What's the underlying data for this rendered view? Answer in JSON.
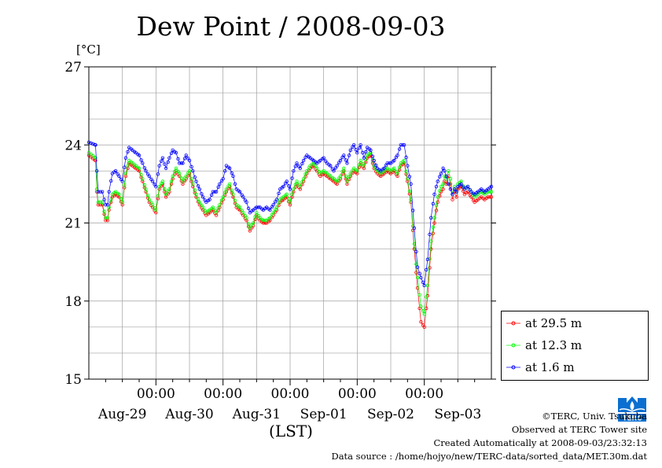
{
  "chart_data": {
    "type": "line",
    "title": "Dew Point / 2008-09-03",
    "ylabel": "[°C]",
    "xlabel": "(LST)",
    "ylim": [
      15,
      27
    ],
    "yticks": [
      15,
      18,
      21,
      24,
      27
    ],
    "xlim_days": [
      0,
      6
    ],
    "x_major_ticks": [
      "00:00",
      "00:00",
      "00:00",
      "00:00",
      "00:00"
    ],
    "day_labels": [
      "Aug-29",
      "Aug-30",
      "Aug-31",
      "Sep-01",
      "Sep-02",
      "Sep-03"
    ],
    "grid": true,
    "legend_position": "bottom-right outside",
    "series": [
      {
        "name": "at 29.5 m",
        "color": "#ff0000",
        "x": [
          0,
          0.1,
          0.12,
          0.14,
          0.2,
          0.25,
          0.28,
          0.3,
          0.35,
          0.4,
          0.45,
          0.5,
          0.55,
          0.6,
          0.65,
          0.7,
          0.75,
          0.8,
          0.85,
          0.9,
          0.95,
          1.0,
          1.05,
          1.1,
          1.15,
          1.2,
          1.25,
          1.3,
          1.35,
          1.4,
          1.45,
          1.5,
          1.55,
          1.6,
          1.65,
          1.7,
          1.75,
          1.8,
          1.85,
          1.9,
          1.95,
          2.0,
          2.05,
          2.1,
          2.15,
          2.2,
          2.25,
          2.3,
          2.35,
          2.4,
          2.45,
          2.5,
          2.55,
          2.6,
          2.65,
          2.7,
          2.75,
          2.8,
          2.85,
          2.9,
          2.95,
          3.0,
          3.05,
          3.1,
          3.15,
          3.2,
          3.25,
          3.3,
          3.35,
          3.4,
          3.45,
          3.5,
          3.55,
          3.6,
          3.65,
          3.7,
          3.75,
          3.8,
          3.85,
          3.9,
          3.95,
          4.0,
          4.05,
          4.1,
          4.15,
          4.2,
          4.25,
          4.3,
          4.35,
          4.4,
          4.45,
          4.5,
          4.55,
          4.6,
          4.65,
          4.7,
          4.75,
          4.8,
          4.85,
          4.9,
          4.95,
          5.0,
          5.05,
          5.1,
          5.15,
          5.2,
          5.25,
          5.28,
          5.3,
          5.33,
          5.36,
          5.39,
          5.42,
          5.45,
          5.48,
          5.5,
          5.55,
          5.6,
          5.65,
          5.7,
          5.75,
          5.8,
          5.85,
          5.9,
          5.95,
          6.0
        ],
        "y": [
          23.6,
          23.4,
          22.2,
          21.7,
          21.7,
          21.1,
          21.1,
          21.5,
          22.0,
          22.1,
          22.0,
          21.7,
          22.8,
          23.3,
          23.2,
          23.1,
          23.0,
          22.6,
          22.2,
          21.8,
          21.6,
          21.4,
          22.3,
          22.5,
          22.0,
          22.2,
          22.7,
          23.0,
          22.8,
          22.5,
          22.7,
          22.9,
          22.4,
          22.0,
          21.7,
          21.5,
          21.3,
          21.4,
          21.5,
          21.3,
          21.6,
          21.9,
          22.2,
          22.4,
          22.0,
          21.6,
          21.5,
          21.3,
          21.1,
          20.7,
          20.9,
          21.3,
          21.1,
          21.0,
          21.0,
          21.1,
          21.3,
          21.5,
          21.8,
          21.9,
          22.0,
          21.7,
          22.2,
          22.5,
          22.3,
          22.6,
          22.9,
          23.1,
          23.2,
          23.0,
          22.8,
          22.9,
          22.8,
          22.7,
          22.6,
          22.5,
          22.7,
          23.0,
          22.5,
          22.8,
          23.0,
          22.9,
          23.3,
          23.1,
          23.5,
          23.6,
          23.1,
          22.9,
          22.8,
          22.9,
          23.0,
          22.9,
          23.0,
          22.8,
          23.2,
          23.3,
          22.6,
          21.8,
          20.0,
          18.5,
          17.2,
          17.0,
          18.2,
          20.0,
          21.0,
          21.8,
          22.2,
          22.3,
          22.6,
          22.5,
          22.8,
          22.5,
          21.9,
          22.2,
          22.0,
          22.3,
          22.4,
          22.1,
          22.2,
          22.0,
          21.8,
          21.9,
          22.0,
          21.9,
          22.0,
          22.0
        ],
        "dx": 0.03
      },
      {
        "name": "at 12.3 m",
        "color": "#00ff00",
        "x": [
          0,
          0.1,
          0.12,
          0.14,
          0.2,
          0.25,
          0.28,
          0.3,
          0.35,
          0.4,
          0.45,
          0.5,
          0.55,
          0.6,
          0.65,
          0.7,
          0.75,
          0.8,
          0.85,
          0.9,
          0.95,
          1.0,
          1.05,
          1.1,
          1.15,
          1.2,
          1.25,
          1.3,
          1.35,
          1.4,
          1.45,
          1.5,
          1.55,
          1.6,
          1.65,
          1.7,
          1.75,
          1.8,
          1.85,
          1.9,
          1.95,
          2.0,
          2.05,
          2.1,
          2.15,
          2.2,
          2.25,
          2.3,
          2.35,
          2.4,
          2.45,
          2.5,
          2.55,
          2.6,
          2.65,
          2.7,
          2.75,
          2.8,
          2.85,
          2.9,
          2.95,
          3.0,
          3.05,
          3.1,
          3.15,
          3.2,
          3.25,
          3.3,
          3.35,
          3.4,
          3.45,
          3.5,
          3.55,
          3.6,
          3.65,
          3.7,
          3.75,
          3.8,
          3.85,
          3.9,
          3.95,
          4.0,
          4.05,
          4.1,
          4.15,
          4.2,
          4.25,
          4.3,
          4.35,
          4.4,
          4.45,
          4.5,
          4.55,
          4.6,
          4.65,
          4.7,
          4.75,
          4.8,
          4.85,
          4.9,
          4.95,
          5.0,
          5.05,
          5.1,
          5.15,
          5.2,
          5.25,
          5.28,
          5.3,
          5.33,
          5.36,
          5.39,
          5.42,
          5.45,
          5.48,
          5.5,
          5.55,
          5.6,
          5.65,
          5.7,
          5.75,
          5.8,
          5.85,
          5.9,
          5.95,
          6.0
        ],
        "y": [
          23.7,
          23.5,
          22.3,
          21.8,
          21.8,
          21.2,
          21.2,
          21.6,
          22.1,
          22.2,
          22.1,
          21.8,
          22.9,
          23.4,
          23.3,
          23.2,
          23.1,
          22.7,
          22.3,
          21.9,
          21.7,
          21.5,
          22.4,
          22.6,
          22.1,
          22.3,
          22.8,
          23.1,
          22.9,
          22.6,
          22.8,
          23.0,
          22.5,
          22.1,
          21.8,
          21.6,
          21.4,
          21.5,
          21.6,
          21.4,
          21.7,
          22.0,
          22.3,
          22.5,
          22.1,
          21.7,
          21.6,
          21.4,
          21.2,
          20.8,
          21.0,
          21.4,
          21.2,
          21.1,
          21.1,
          21.2,
          21.4,
          21.6,
          21.9,
          22.0,
          22.1,
          21.8,
          22.3,
          22.6,
          22.4,
          22.7,
          23.0,
          23.2,
          23.3,
          23.1,
          22.9,
          23.0,
          22.9,
          22.8,
          22.7,
          22.6,
          22.8,
          23.1,
          22.6,
          22.9,
          23.1,
          23.0,
          23.4,
          23.2,
          23.6,
          23.7,
          23.2,
          23.0,
          22.9,
          23.0,
          23.1,
          23.0,
          23.1,
          22.9,
          23.3,
          23.4,
          22.7,
          21.9,
          20.2,
          18.9,
          17.8,
          17.5,
          18.6,
          20.3,
          21.2,
          22.0,
          22.4,
          22.5,
          22.8,
          22.7,
          23.0,
          22.7,
          22.1,
          22.4,
          22.2,
          22.5,
          22.6,
          22.3,
          22.4,
          22.2,
          22.0,
          22.1,
          22.2,
          22.1,
          22.2,
          22.2
        ],
        "dx": 0.03
      },
      {
        "name": "at 1.6 m",
        "color": "#0000ff",
        "x": [
          0,
          0.1,
          0.12,
          0.14,
          0.2,
          0.25,
          0.28,
          0.3,
          0.35,
          0.4,
          0.45,
          0.5,
          0.55,
          0.6,
          0.65,
          0.7,
          0.75,
          0.8,
          0.85,
          0.9,
          0.95,
          1.0,
          1.05,
          1.1,
          1.15,
          1.2,
          1.25,
          1.3,
          1.35,
          1.4,
          1.45,
          1.5,
          1.55,
          1.6,
          1.65,
          1.7,
          1.75,
          1.8,
          1.85,
          1.9,
          1.95,
          2.0,
          2.05,
          2.1,
          2.15,
          2.2,
          2.25,
          2.3,
          2.35,
          2.4,
          2.45,
          2.5,
          2.55,
          2.6,
          2.65,
          2.7,
          2.75,
          2.8,
          2.85,
          2.9,
          2.95,
          3.0,
          3.05,
          3.1,
          3.15,
          3.2,
          3.25,
          3.3,
          3.35,
          3.4,
          3.45,
          3.5,
          3.55,
          3.6,
          3.65,
          3.7,
          3.75,
          3.8,
          3.85,
          3.9,
          3.95,
          4.0,
          4.05,
          4.1,
          4.15,
          4.2,
          4.25,
          4.3,
          4.35,
          4.4,
          4.45,
          4.5,
          4.55,
          4.6,
          4.65,
          4.7,
          4.75,
          4.8,
          4.85,
          4.9,
          4.95,
          5.0,
          5.05,
          5.1,
          5.15,
          5.2,
          5.25,
          5.28,
          5.3,
          5.33,
          5.36,
          5.39,
          5.42,
          5.45,
          5.48,
          5.5,
          5.55,
          5.6,
          5.65,
          5.7,
          5.75,
          5.8,
          5.85,
          5.9,
          5.95,
          6.0
        ],
        "y": [
          24.1,
          24.0,
          23.0,
          22.2,
          22.2,
          21.7,
          21.7,
          22.2,
          22.9,
          23.0,
          22.8,
          22.6,
          23.5,
          23.9,
          23.8,
          23.7,
          23.6,
          23.3,
          23.0,
          22.8,
          22.6,
          22.4,
          23.2,
          23.5,
          23.1,
          23.5,
          23.8,
          23.7,
          23.3,
          23.3,
          23.6,
          23.4,
          23.0,
          22.6,
          22.3,
          22.0,
          21.8,
          21.9,
          22.2,
          22.2,
          22.5,
          22.7,
          23.2,
          23.1,
          22.8,
          22.3,
          22.2,
          22.0,
          21.8,
          21.4,
          21.5,
          21.6,
          21.6,
          21.5,
          21.6,
          21.5,
          21.7,
          21.9,
          22.3,
          22.4,
          22.6,
          22.3,
          23.0,
          23.3,
          23.1,
          23.4,
          23.6,
          23.5,
          23.4,
          23.3,
          23.4,
          23.5,
          23.3,
          23.2,
          23.0,
          23.2,
          23.4,
          23.6,
          23.3,
          23.8,
          24.0,
          23.7,
          24.0,
          23.5,
          23.9,
          23.8,
          23.4,
          23.1,
          23.0,
          23.1,
          23.3,
          23.3,
          23.4,
          23.6,
          24.0,
          24.0,
          23.2,
          22.5,
          20.8,
          19.3,
          18.9,
          18.6,
          19.6,
          21.2,
          22.1,
          22.6,
          22.9,
          23.1,
          23.0,
          22.8,
          22.5,
          22.3,
          22.1,
          22.3,
          22.2,
          22.4,
          22.5,
          22.3,
          22.4,
          22.2,
          22.1,
          22.2,
          22.3,
          22.2,
          22.3,
          22.4
        ],
        "dx": 0.03
      }
    ]
  },
  "credits": {
    "copyright": "©TERC, Univ. Tsukuba",
    "site": "Observed at TERC Tower site",
    "created": "Created Automatically at 2008-09-03/23:32:13",
    "source": "Data source : /home/hojyo/new/TERC-data/sorted_data/MET.30m.dat"
  },
  "logo": {
    "icon": "terc-logo-icon",
    "text": "TERC",
    "color": "#0a6fd0"
  }
}
